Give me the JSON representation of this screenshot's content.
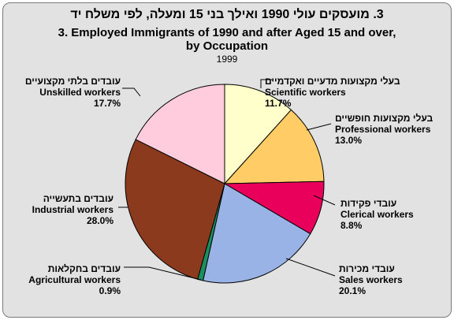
{
  "title_hebrew": "3.  מועסקים עולי 1990 ואילך בני 15 ומעלה, לפי משלח יד",
  "title_english_line1": "3.  Employed Immigrants of 1990 and after Aged 15 and over,",
  "title_english_line2": "by Occupation",
  "year": "1999",
  "chart_data": {
    "type": "pie",
    "title": "Employed Immigrants of 1990 and after Aged 15 and over, by Occupation",
    "year": "1999",
    "unit": "%",
    "slices": [
      {
        "label": "Scientific workers",
        "label_he": "בעלי מקצועות מדעיים ואקדמיים",
        "value": 11.7,
        "value_label": "11.7%",
        "color": "#ffffcc"
      },
      {
        "label": "Professional workers",
        "label_he": "בעלי מקצועות חופשיים",
        "value": 13.0,
        "value_label": "13.0%",
        "color": "#ffcc66"
      },
      {
        "label": "Clerical workers",
        "label_he": "עובדי פקידות",
        "value": 8.8,
        "value_label": "8.8%",
        "color": "#e8005a"
      },
      {
        "label": "Sales workers",
        "label_he": "עובדי מכירות",
        "value": 20.1,
        "value_label": "20.1%",
        "color": "#99b3e6"
      },
      {
        "label": "Agricultural workers",
        "label_he": "עובדים בחקלאות",
        "value": 0.9,
        "value_label": "0.9%",
        "color": "#1a9060"
      },
      {
        "label": "Industrial workers",
        "label_he": "עובדים בתעשייה",
        "value": 28.0,
        "value_label": "28.0%",
        "color": "#8b3a1e"
      },
      {
        "label": "Unskilled workers",
        "label_he": "עובדים בלתי מקצועיים",
        "value": 17.7,
        "value_label": "17.7%",
        "color": "#ffccdd"
      }
    ]
  }
}
